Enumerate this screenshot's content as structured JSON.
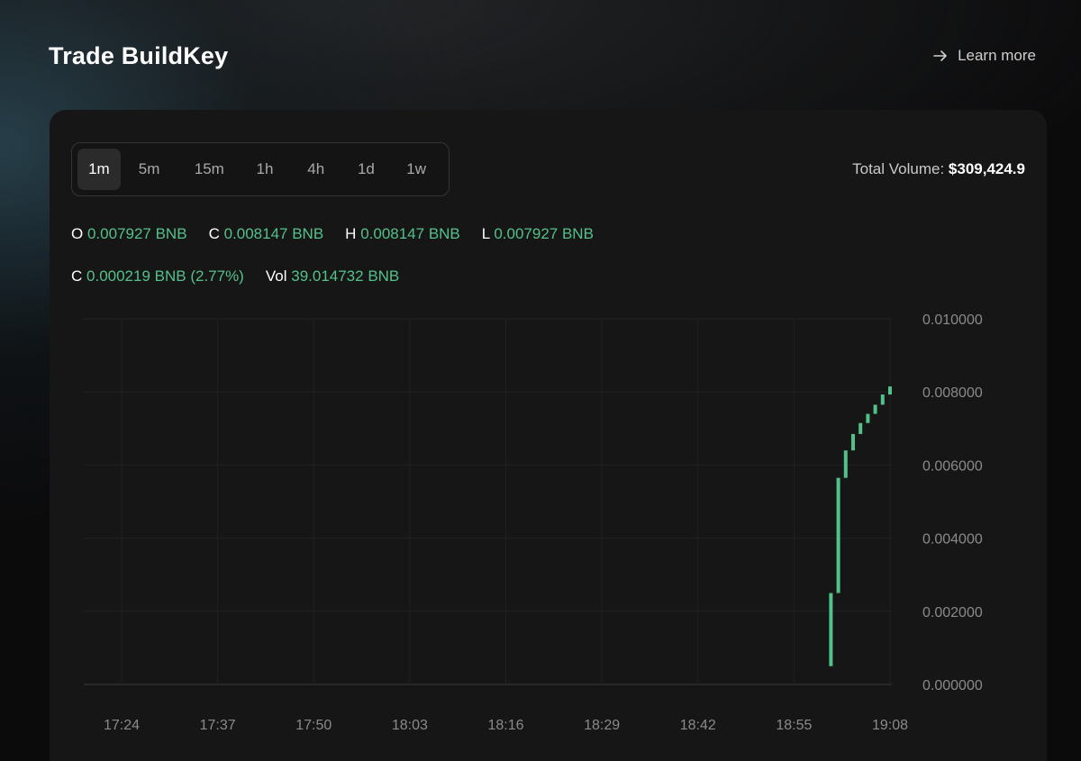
{
  "header": {
    "title": "Trade BuildKey",
    "learn_more": "Learn more"
  },
  "timeframes": {
    "items": [
      "1m",
      "5m",
      "15m",
      "1h",
      "4h",
      "1d",
      "1w"
    ],
    "active": "1m"
  },
  "total_volume": {
    "label": "Total Volume:",
    "value": "$309,424.9"
  },
  "ohlc": {
    "open_label": "O",
    "open_value": "0.007927 BNB",
    "close_label": "C",
    "close_value": "0.008147 BNB",
    "high_label": "H",
    "high_value": "0.008147 BNB",
    "low_label": "L",
    "low_value": "0.007927 BNB",
    "change_label": "C",
    "change_value": "0.000219 BNB (2.77%)",
    "vol_label": "Vol",
    "vol_value": "39.014732 BNB"
  },
  "colors": {
    "accent_green": "#54c08a",
    "card_bg": "#161616",
    "axis_text": "#8a8a8a"
  },
  "chart_data": {
    "type": "candlestick",
    "x_tick_labels": [
      "17:24",
      "17:37",
      "17:50",
      "18:03",
      "18:16",
      "18:29",
      "18:42",
      "18:55",
      "19:08"
    ],
    "y_tick_labels": [
      "0.010000",
      "0.008000",
      "0.006000",
      "0.004000",
      "0.002000",
      "0.000000"
    ],
    "ylim": [
      0,
      0.01
    ],
    "xlim": [
      "17:24",
      "19:08"
    ],
    "candles": [
      {
        "time": "19:00",
        "open": 0.0005,
        "close": 0.0025
      },
      {
        "time": "19:01",
        "open": 0.0025,
        "close": 0.00565
      },
      {
        "time": "19:02",
        "open": 0.00565,
        "close": 0.0064
      },
      {
        "time": "19:03",
        "open": 0.0064,
        "close": 0.00685
      },
      {
        "time": "19:04",
        "open": 0.00685,
        "close": 0.00715
      },
      {
        "time": "19:05",
        "open": 0.00715,
        "close": 0.0074
      },
      {
        "time": "19:06",
        "open": 0.0074,
        "close": 0.00765
      },
      {
        "time": "19:07",
        "open": 0.00765,
        "close": 0.00793
      },
      {
        "time": "19:08",
        "open": 0.00793,
        "close": 0.00815
      }
    ],
    "grid": true,
    "y_axis_position": "right"
  }
}
